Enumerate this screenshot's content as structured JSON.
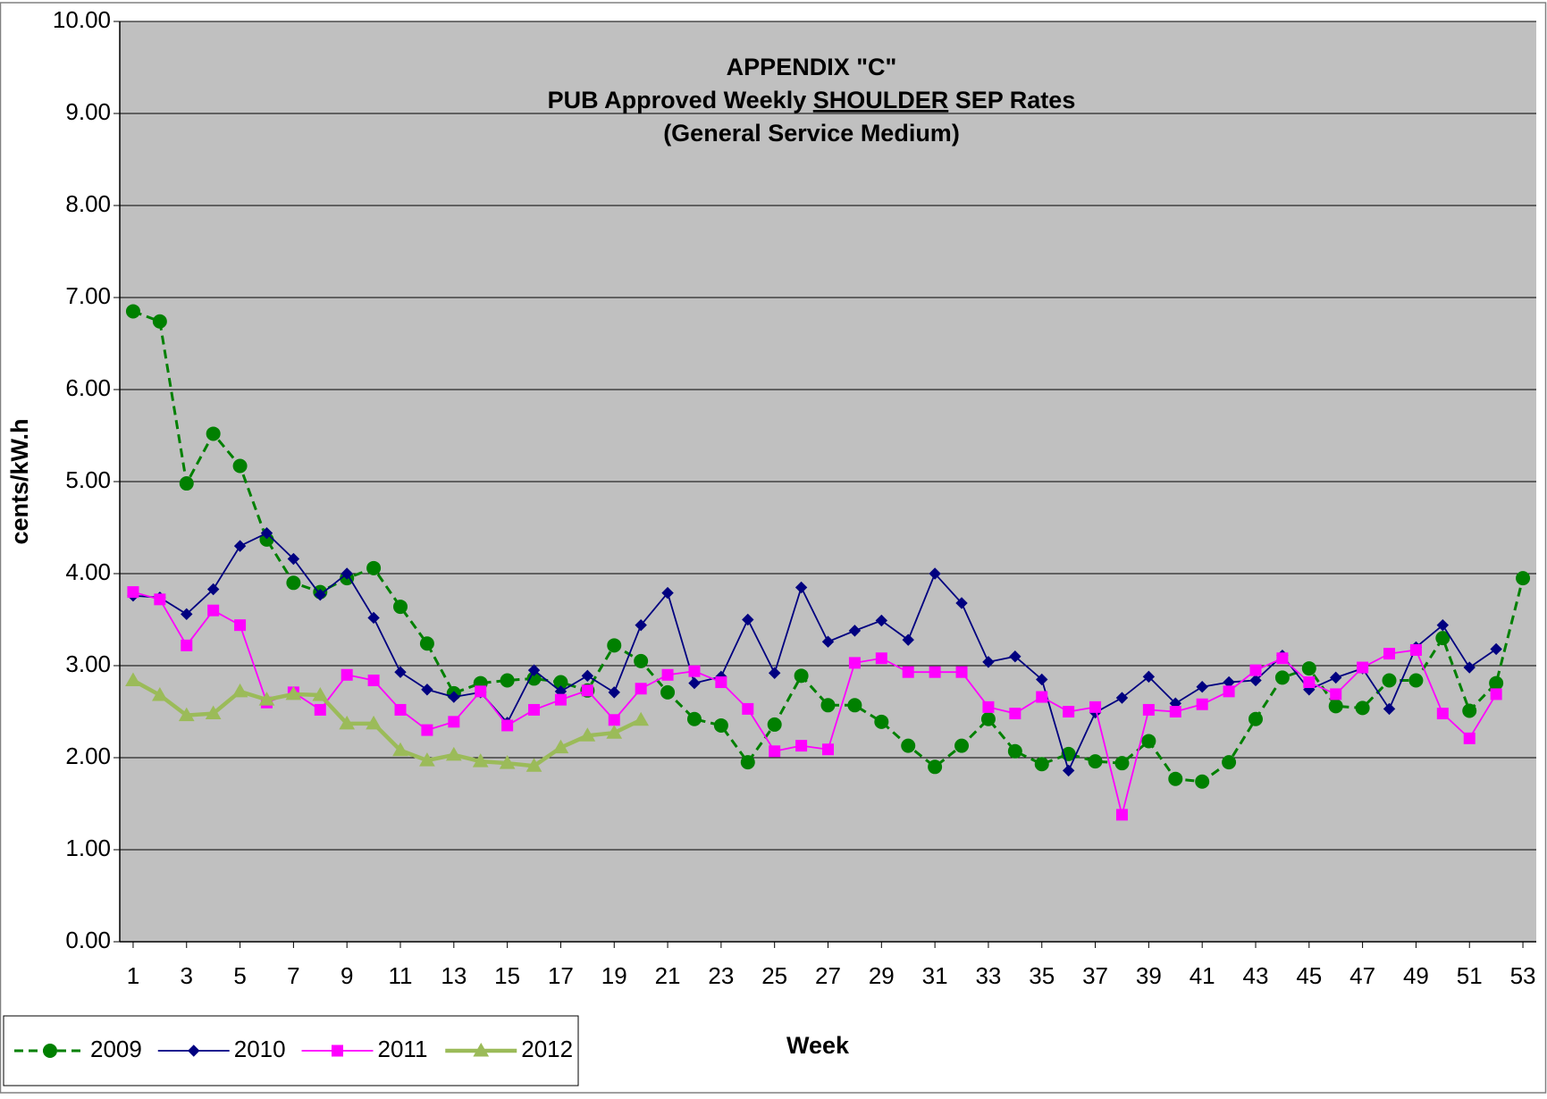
{
  "chart_data": {
    "type": "line",
    "title_lines": [
      [
        {
          "text": "APPENDIX \"C\""
        }
      ],
      [
        {
          "text": "PUB Approved Weekly "
        },
        {
          "text": "SHOULDER",
          "underline": true
        },
        {
          "text": " SEP Rates"
        }
      ],
      [
        {
          "text": "(General Service Medium)"
        }
      ]
    ],
    "x_label": "Week",
    "y_label": "cents/kW.h",
    "x": [
      1,
      2,
      3,
      4,
      5,
      6,
      7,
      8,
      9,
      10,
      11,
      12,
      13,
      14,
      15,
      16,
      17,
      18,
      19,
      20,
      21,
      22,
      23,
      24,
      25,
      26,
      27,
      28,
      29,
      30,
      31,
      32,
      33,
      34,
      35,
      36,
      37,
      38,
      39,
      40,
      41,
      42,
      43,
      44,
      45,
      46,
      47,
      48,
      49,
      50,
      51,
      52,
      53
    ],
    "xlim": [
      0.5,
      53.5
    ],
    "xticks": [
      1,
      3,
      5,
      7,
      9,
      11,
      13,
      15,
      17,
      19,
      21,
      23,
      25,
      27,
      29,
      31,
      33,
      35,
      37,
      39,
      41,
      43,
      45,
      47,
      49,
      51,
      53
    ],
    "ylim": [
      0,
      10
    ],
    "yticks": [
      {
        "value": 0,
        "label": "0.00"
      },
      {
        "value": 1,
        "label": "1.00"
      },
      {
        "value": 2,
        "label": "2.00"
      },
      {
        "value": 3,
        "label": "3.00"
      },
      {
        "value": 4,
        "label": "4.00"
      },
      {
        "value": 5,
        "label": "5.00"
      },
      {
        "value": 6,
        "label": "6.00"
      },
      {
        "value": 7,
        "label": "7.00"
      },
      {
        "value": 8,
        "label": "8.00"
      },
      {
        "value": 9,
        "label": "9.00"
      },
      {
        "value": 10,
        "label": "10.00"
      }
    ],
    "grid": true,
    "plot_background": "#c0c0c0",
    "legend": "bottom-left",
    "series": [
      {
        "name": "2009",
        "color": "#008000",
        "marker": "circle",
        "dashed": true,
        "width": 3,
        "values": [
          6.85,
          6.74,
          4.98,
          5.52,
          5.17,
          4.37,
          3.9,
          3.8,
          3.95,
          4.06,
          3.64,
          3.24,
          2.7,
          2.81,
          2.84,
          2.86,
          2.82,
          2.73,
          3.22,
          3.05,
          2.71,
          2.42,
          2.35,
          1.95,
          2.36,
          2.89,
          2.57,
          2.57,
          2.39,
          2.13,
          1.9,
          2.13,
          2.42,
          2.07,
          1.93,
          2.04,
          1.96,
          1.94,
          2.18,
          1.77,
          1.74,
          1.95,
          2.42,
          2.87,
          2.97,
          2.56,
          2.54,
          2.84,
          2.84,
          3.3,
          2.51,
          2.81,
          3.95
        ]
      },
      {
        "name": "2010",
        "color": "#000080",
        "marker": "diamond",
        "dashed": false,
        "width": 1.8,
        "values": [
          3.76,
          3.74,
          3.56,
          3.83,
          4.3,
          4.44,
          4.16,
          3.77,
          4.0,
          3.52,
          2.93,
          2.74,
          2.66,
          2.71,
          2.38,
          2.95,
          2.72,
          2.89,
          2.71,
          3.44,
          3.79,
          2.81,
          2.88,
          3.5,
          2.92,
          3.85,
          3.26,
          3.38,
          3.49,
          3.28,
          4.0,
          3.68,
          3.04,
          3.1,
          2.85,
          1.86,
          2.49,
          2.65,
          2.88,
          2.59,
          2.77,
          2.82,
          2.84,
          3.11,
          2.74,
          2.87,
          2.97,
          2.53,
          3.2,
          3.44,
          2.98,
          3.18,
          null
        ]
      },
      {
        "name": "2011",
        "color": "#ff00ff",
        "marker": "square",
        "dashed": false,
        "width": 1.8,
        "values": [
          3.8,
          3.72,
          3.22,
          3.6,
          3.44,
          2.6,
          2.71,
          2.52,
          2.9,
          2.84,
          2.52,
          2.3,
          2.39,
          2.72,
          2.35,
          2.52,
          2.63,
          2.73,
          2.41,
          2.75,
          2.9,
          2.94,
          2.82,
          2.53,
          2.07,
          2.13,
          2.09,
          3.03,
          3.08,
          2.93,
          2.93,
          2.93,
          2.55,
          2.48,
          2.66,
          2.5,
          2.55,
          1.38,
          2.52,
          2.5,
          2.58,
          2.72,
          2.95,
          3.08,
          2.82,
          2.69,
          2.98,
          3.13,
          3.17,
          2.48,
          2.21,
          2.69,
          null
        ]
      },
      {
        "name": "2012",
        "color": "#9bbb59",
        "marker": "triangle",
        "dashed": false,
        "width": 4.5,
        "values": [
          2.84,
          2.68,
          2.46,
          2.48,
          2.72,
          2.63,
          2.69,
          2.68,
          2.37,
          2.37,
          2.08,
          1.97,
          2.03,
          1.96,
          1.94,
          1.91,
          2.11,
          2.24,
          2.27,
          2.41,
          null,
          null,
          null,
          null,
          null,
          null,
          null,
          null,
          null,
          null,
          null,
          null,
          null,
          null,
          null,
          null,
          null,
          null,
          null,
          null,
          null,
          null,
          null,
          null,
          null,
          null,
          null,
          null,
          null,
          null,
          null,
          null,
          null
        ]
      }
    ]
  }
}
